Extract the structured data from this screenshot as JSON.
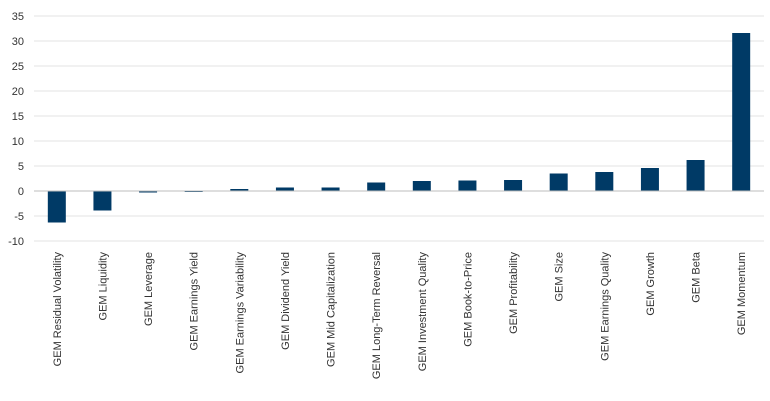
{
  "chart_data": {
    "type": "bar",
    "title": "",
    "xlabel": "",
    "ylabel": "",
    "ylim": [
      -10,
      35
    ],
    "yticks": [
      -10,
      -5,
      0,
      5,
      10,
      15,
      20,
      25,
      30,
      35
    ],
    "grid": true,
    "legend": "none",
    "bar_color": "#003a66",
    "grid_color": "#e3e3e3",
    "categories": [
      "GEM Residual Volatility",
      "GEM Liquidity",
      "GEM Leverage",
      "GEM Earnings Yield",
      "GEM Earnings Variability",
      "GEM Dividend Yield",
      "GEM Mid Capitalization",
      "GEM Long-Term Reversal",
      "GEM Investment Quality",
      "GEM Book-to-Price",
      "GEM Profitability",
      "GEM Size",
      "GEM Earnings Quality",
      "GEM Growth",
      "GEM Beta",
      "GEM Momentum"
    ],
    "values": [
      -6.3,
      -3.9,
      -0.3,
      -0.1,
      0.4,
      0.7,
      0.7,
      1.7,
      2.0,
      2.1,
      2.2,
      3.5,
      3.8,
      4.6,
      6.2,
      31.6
    ]
  }
}
